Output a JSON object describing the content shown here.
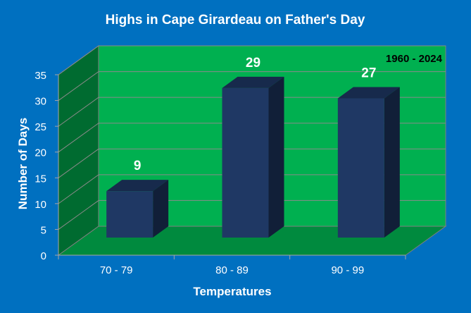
{
  "chart_data": {
    "type": "bar",
    "title": "Highs in Cape Girardeau on Father's Day",
    "subtitle": "1960 - 2024",
    "xlabel": "Temperatures",
    "ylabel": "Number of Days",
    "categories": [
      "70 - 79",
      "80 - 89",
      "90 - 99"
    ],
    "values": [
      9,
      29,
      27
    ],
    "data_labels": [
      "9",
      "29",
      "27"
    ],
    "ylim": [
      0,
      35
    ],
    "yticks": [
      "0",
      "5",
      "10",
      "15",
      "20",
      "25",
      "30",
      "35"
    ],
    "grid": true,
    "legend": "none",
    "three_d": true,
    "colors": {
      "background": "#0070c0",
      "wall": "#00b050",
      "side_wall": "#006b30",
      "floor": "#008a3e",
      "bar_front": "#1f3864",
      "bar_top": "#172a4c",
      "bar_side": "#111f38",
      "text": "#ffffff",
      "subtitle_text": "#000000"
    }
  }
}
